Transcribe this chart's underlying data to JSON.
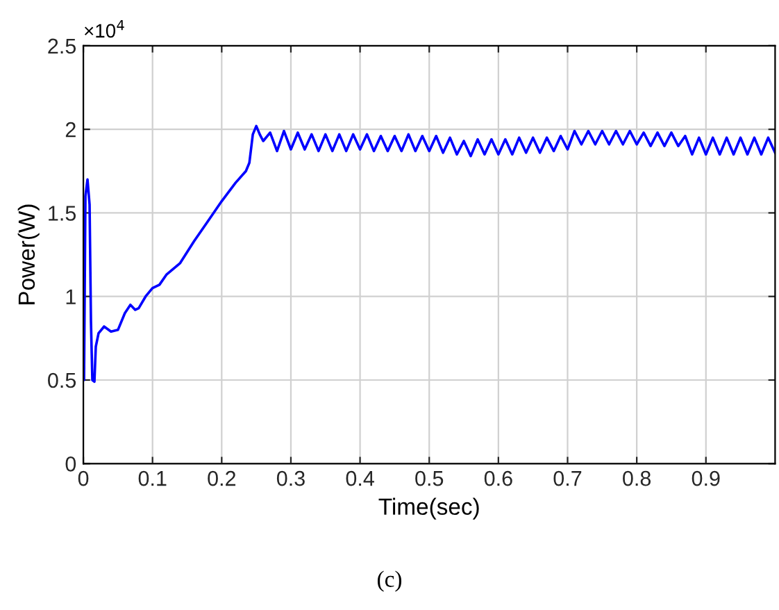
{
  "chart_data": {
    "type": "line",
    "xlabel": "Time(sec)",
    "ylabel": "Power(W)",
    "annotations": [
      "×10$^{4}$",
      "(c)"
    ],
    "x": [
      0,
      0.001,
      0.003,
      0.006,
      0.009,
      0.011,
      0.013,
      0.016,
      0.018,
      0.022,
      0.03,
      0.04,
      0.05,
      0.06,
      0.068,
      0.075,
      0.08,
      0.09,
      0.1,
      0.11,
      0.12,
      0.14,
      0.16,
      0.18,
      0.2,
      0.22,
      0.235,
      0.24,
      0.245,
      0.25,
      0.255,
      0.26,
      0.27,
      0.28,
      0.29,
      0.3,
      0.31,
      0.32,
      0.33,
      0.34,
      0.35,
      0.36,
      0.37,
      0.38,
      0.39,
      0.4,
      0.41,
      0.42,
      0.43,
      0.44,
      0.45,
      0.46,
      0.47,
      0.48,
      0.49,
      0.5,
      0.51,
      0.52,
      0.53,
      0.54,
      0.55,
      0.56,
      0.57,
      0.58,
      0.59,
      0.6,
      0.61,
      0.62,
      0.63,
      0.64,
      0.65,
      0.66,
      0.67,
      0.68,
      0.69,
      0.7,
      0.71,
      0.72,
      0.73,
      0.74,
      0.75,
      0.76,
      0.77,
      0.78,
      0.79,
      0.8,
      0.81,
      0.82,
      0.83,
      0.84,
      0.85,
      0.86,
      0.87,
      0.88,
      0.89,
      0.9,
      0.91,
      0.92,
      0.93,
      0.94,
      0.95,
      0.96,
      0.97,
      0.98,
      0.99,
      1.0
    ],
    "series": [
      {
        "color": "#0000ff",
        "values": [
          0.6,
          0.5,
          1.6,
          1.7,
          1.55,
          0.85,
          0.5,
          0.49,
          0.7,
          0.78,
          0.82,
          0.79,
          0.8,
          0.9,
          0.95,
          0.92,
          0.93,
          1.0,
          1.05,
          1.07,
          1.13,
          1.2,
          1.33,
          1.45,
          1.57,
          1.68,
          1.75,
          1.8,
          1.97,
          2.02,
          1.97,
          1.93,
          1.98,
          1.87,
          1.99,
          1.88,
          1.98,
          1.88,
          1.97,
          1.87,
          1.97,
          1.87,
          1.97,
          1.87,
          1.97,
          1.88,
          1.97,
          1.87,
          1.96,
          1.87,
          1.96,
          1.87,
          1.97,
          1.87,
          1.96,
          1.87,
          1.96,
          1.86,
          1.95,
          1.85,
          1.93,
          1.84,
          1.94,
          1.85,
          1.94,
          1.85,
          1.94,
          1.85,
          1.95,
          1.86,
          1.95,
          1.86,
          1.95,
          1.87,
          1.96,
          1.88,
          1.99,
          1.91,
          1.99,
          1.91,
          1.99,
          1.91,
          1.99,
          1.91,
          1.99,
          1.91,
          1.98,
          1.9,
          1.98,
          1.9,
          1.98,
          1.9,
          1.96,
          1.85,
          1.95,
          1.85,
          1.95,
          1.85,
          1.95,
          1.85,
          1.95,
          1.85,
          1.95,
          1.85,
          1.95,
          1.86
        ]
      }
    ],
    "xlim": [
      0,
      1
    ],
    "xticks": [
      0,
      0.1,
      0.2,
      0.3,
      0.4,
      0.5,
      0.6,
      0.7,
      0.8,
      0.9
    ],
    "ylim": [
      0,
      2.5
    ],
    "yticks": [
      0,
      0.5,
      1,
      1.5,
      2,
      2.5
    ],
    "grid": true,
    "marker": "none",
    "line_style": "solid"
  }
}
